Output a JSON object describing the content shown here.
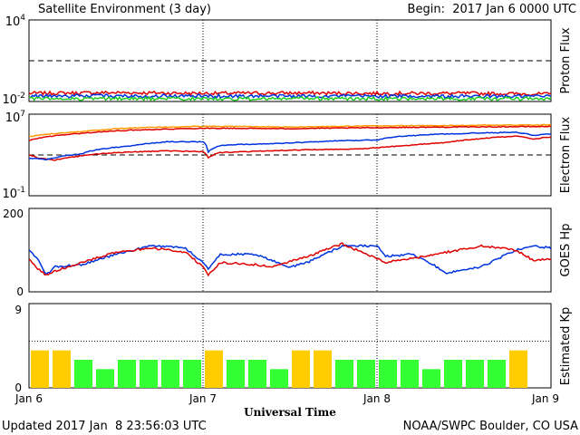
{
  "header": {
    "title": "Satellite Environment (3 day)",
    "begin": "Begin:  2017 Jan 6 0000 UTC"
  },
  "footer": {
    "updated": "Updated 2017 Jan  8 23:56:03 UTC",
    "credit": "NOAA/SWPC Boulder, CO USA"
  },
  "colors": {
    "red": "#e00000",
    "blue": "#0033e0",
    "green": "#22cc22",
    "orange": "#ff9900",
    "kp_green": "#33ff33",
    "kp_yellow": "#ffcc00"
  },
  "chart_data": [
    {
      "type": "line",
      "panel": "proton",
      "ylabel": "Proton Flux",
      "yscale": "log",
      "ylim": [
        0.01,
        10000
      ],
      "tick_labels": [
        {
          "base": "10",
          "exp": "4",
          "value": 10000
        },
        {
          "base": "10",
          "exp": "-2",
          "value": 0.01
        }
      ],
      "dashed_threshold": 10,
      "days": [
        0,
        1,
        2,
        3
      ],
      "series": [
        {
          "color": "red",
          "x": [
            0,
            0.5,
            1,
            1.5,
            2,
            2.5,
            3
          ],
          "y": [
            0.04,
            0.045,
            0.04,
            0.042,
            0.04,
            0.04,
            0.035
          ]
        },
        {
          "color": "blue",
          "x": [
            0,
            0.5,
            1,
            1.5,
            2,
            2.5,
            3
          ],
          "y": [
            0.025,
            0.026,
            0.025,
            0.025,
            0.025,
            0.024,
            0.024
          ]
        },
        {
          "color": "green",
          "x": [
            0,
            0.5,
            1,
            1.5,
            2,
            2.5,
            3
          ],
          "y": [
            0.016,
            0.016,
            0.016,
            0.016,
            0.016,
            0.016,
            0.016
          ]
        }
      ]
    },
    {
      "type": "line",
      "panel": "electron",
      "ylabel": "Electron Flux",
      "yscale": "log",
      "ylim": [
        0.1,
        10000000
      ],
      "tick_labels": [
        {
          "base": "10",
          "exp": "7",
          "value": 10000000
        },
        {
          "base": "10",
          "exp": "-1",
          "value": 0.1
        }
      ],
      "dashed_threshold": 1000,
      "series": [
        {
          "color": "orange",
          "x": [
            0,
            0.3,
            0.6,
            1.0,
            1.5,
            2.0,
            2.5,
            3.0
          ],
          "y": [
            60000,
            200000,
            450000,
            650000,
            550000,
            700000,
            800000,
            900000
          ]
        },
        {
          "color": "red",
          "x": [
            0,
            0.3,
            0.6,
            1.0,
            1.5,
            2.0,
            2.5,
            3.0
          ],
          "y": [
            25000,
            130000,
            280000,
            420000,
            380000,
            480000,
            560000,
            620000
          ]
        },
        {
          "color": "red",
          "x": [
            0,
            0.05,
            0.15,
            0.3,
            0.5,
            0.8,
            1.0,
            1.03,
            1.1,
            1.3,
            1.6,
            1.9,
            2.0,
            2.2,
            2.4,
            2.6,
            2.8,
            2.9,
            3.0
          ],
          "y": [
            1000,
            500,
            300,
            800,
            1700,
            2500,
            2100,
            500,
            1700,
            2300,
            3200,
            4000,
            5000,
            9000,
            17000,
            40000,
            70000,
            35000,
            60000
          ]
        },
        {
          "color": "blue",
          "x": [
            0,
            0.1,
            0.3,
            0.6,
            0.8,
            1.0,
            1.03,
            1.1,
            1.2,
            1.35,
            1.5,
            1.8,
            2.0,
            2.1,
            2.3,
            2.5,
            2.8,
            2.9,
            3.0
          ],
          "y": [
            500,
            350,
            1200,
            8000,
            20000,
            20000,
            2000,
            8000,
            11000,
            12000,
            15000,
            25000,
            30000,
            60000,
            100000,
            130000,
            170000,
            80000,
            120000
          ]
        }
      ]
    },
    {
      "type": "line",
      "panel": "goes_hp",
      "ylabel": "GOES Hp",
      "ylim": [
        0,
        200
      ],
      "tick_labels": [
        "200",
        "0"
      ],
      "series": [
        {
          "color": "blue",
          "x": [
            0,
            0.05,
            0.1,
            0.15,
            0.3,
            0.5,
            0.7,
            0.9,
            1.0,
            1.03,
            1.1,
            1.3,
            1.5,
            1.6,
            1.8,
            2.0,
            2.05,
            2.2,
            2.3,
            2.4,
            2.6,
            2.8,
            2.9,
            3.0
          ],
          "y": [
            100,
            80,
            40,
            60,
            65,
            90,
            110,
            105,
            70,
            55,
            90,
            90,
            60,
            70,
            110,
            110,
            85,
            90,
            70,
            45,
            60,
            100,
            110,
            105
          ]
        },
        {
          "color": "red",
          "x": [
            0,
            0.05,
            0.1,
            0.15,
            0.3,
            0.5,
            0.7,
            0.9,
            1.0,
            1.03,
            1.1,
            1.3,
            1.4,
            1.6,
            1.8,
            2.0,
            2.05,
            2.2,
            2.4,
            2.6,
            2.8,
            2.9,
            3.0
          ],
          "y": [
            80,
            55,
            40,
            50,
            70,
            95,
            105,
            95,
            60,
            40,
            70,
            65,
            60,
            85,
            115,
            80,
            70,
            80,
            95,
            110,
            100,
            75,
            80
          ]
        }
      ]
    },
    {
      "type": "bar",
      "panel": "kp",
      "ylabel": "Estimated Kp",
      "ylim": [
        0,
        9
      ],
      "tick_labels": [
        "9",
        "0"
      ],
      "gridlines": [
        5,
        9
      ],
      "bar_width_hours": 3,
      "values": [
        4,
        4,
        3,
        2,
        3,
        3,
        3,
        3,
        4,
        3,
        3,
        2,
        4,
        4,
        3,
        3,
        3,
        3,
        2,
        3,
        3,
        3,
        4
      ],
      "colors": [
        "yellow",
        "yellow",
        "green",
        "green",
        "green",
        "green",
        "green",
        "green",
        "yellow",
        "green",
        "green",
        "green",
        "yellow",
        "yellow",
        "green",
        "green",
        "green",
        "green",
        "green",
        "green",
        "green",
        "green",
        "yellow"
      ]
    }
  ],
  "xaxis": {
    "title": "Universal Time",
    "labels": [
      "Jan 6",
      "Jan 7",
      "Jan 8",
      "Jan 9"
    ]
  }
}
